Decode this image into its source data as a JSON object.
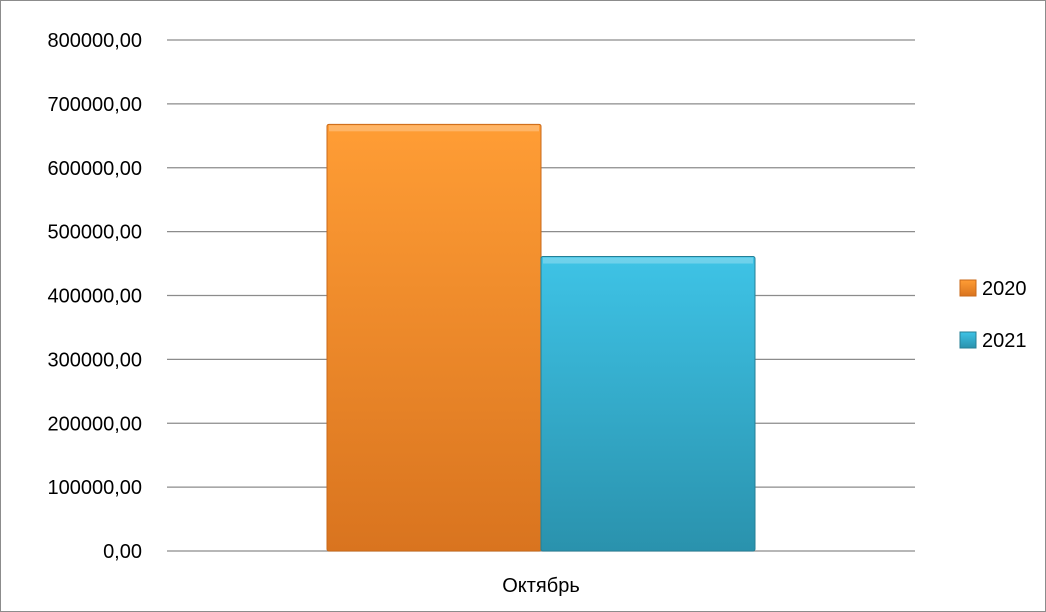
{
  "chart_data": {
    "type": "bar",
    "categories": [
      "Октябрь"
    ],
    "series": [
      {
        "name": "2020",
        "values": [
          668000
        ],
        "color": "#f58f2a"
      },
      {
        "name": "2021",
        "values": [
          461000
        ],
        "color": "#2fb3d3"
      }
    ],
    "ylim": [
      0,
      800000
    ],
    "yticks": [
      0,
      100000,
      200000,
      300000,
      400000,
      500000,
      600000,
      700000,
      800000
    ],
    "ytick_labels": [
      "0,00",
      "100000,00",
      "200000,00",
      "300000,00",
      "400000,00",
      "500000,00",
      "600000,00",
      "700000,00",
      "800000,00"
    ],
    "grid": true,
    "legend_position": "right",
    "title": "",
    "xlabel": "",
    "ylabel": ""
  }
}
